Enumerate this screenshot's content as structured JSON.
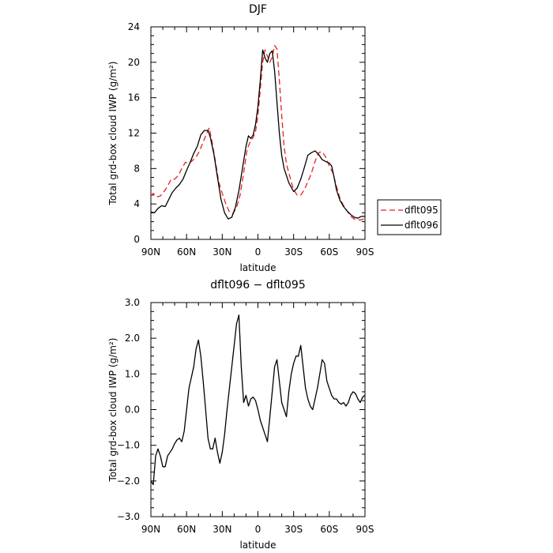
{
  "chart_data": [
    {
      "type": "line",
      "title": "DJF",
      "xlabel": "latitude",
      "ylabel": "Total grd-box cloud IWP (g/m²)",
      "xlim": [
        90,
        -90
      ],
      "ylim": [
        0,
        24
      ],
      "yticks": [
        0,
        4,
        8,
        12,
        16,
        20,
        24
      ],
      "xticks": [
        {
          "value": 90,
          "label": "90N"
        },
        {
          "value": 60,
          "label": "60N"
        },
        {
          "value": 30,
          "label": "30N"
        },
        {
          "value": 0,
          "label": "0"
        },
        {
          "value": -30,
          "label": "30S"
        },
        {
          "value": -60,
          "label": "60S"
        },
        {
          "value": -90,
          "label": "90S"
        }
      ],
      "legend": {
        "placement": "right"
      },
      "series": [
        {
          "name": "dflt095",
          "color": "#e8201a",
          "dash": "dashed",
          "x": [
            90,
            88,
            85,
            82,
            79,
            76,
            73,
            70,
            67,
            64,
            61,
            58,
            55,
            52,
            49,
            46,
            43,
            41,
            39,
            36,
            33,
            30,
            27,
            24,
            21,
            18,
            15,
            12,
            9,
            6,
            4,
            2,
            0,
            -2,
            -4,
            -6,
            -8,
            -10,
            -12,
            -14,
            -16,
            -18,
            -20,
            -22,
            -24,
            -26,
            -28,
            -30,
            -33,
            -36,
            -39,
            -42,
            -45,
            -48,
            -51,
            -54,
            -57,
            -60,
            -63,
            -66,
            -69,
            -72,
            -75,
            -78,
            -81,
            -84,
            -87,
            -90
          ],
          "y": [
            4.9,
            5.2,
            4.8,
            4.9,
            5.4,
            6.0,
            6.8,
            6.8,
            7.2,
            8.0,
            8.7,
            8.6,
            8.9,
            9.3,
            10.0,
            11.0,
            12.0,
            12.6,
            11.3,
            9.0,
            6.5,
            5.2,
            4.0,
            3.1,
            2.9,
            3.6,
            5.0,
            7.5,
            10.2,
            11.2,
            11.5,
            12.2,
            14.0,
            17.0,
            20.0,
            21.4,
            20.7,
            20.0,
            20.6,
            21.9,
            21.5,
            18.0,
            14.0,
            10.5,
            8.5,
            7.5,
            6.5,
            5.6,
            5.0,
            5.0,
            5.6,
            6.5,
            7.5,
            8.8,
            9.8,
            9.9,
            9.3,
            8.3,
            7.5,
            6.0,
            4.6,
            3.8,
            3.2,
            2.6,
            2.3,
            2.2,
            2.2,
            2.4
          ]
        },
        {
          "name": "dflt096",
          "color": "#000000",
          "dash": "solid",
          "x": [
            90,
            87,
            84,
            81,
            78,
            75,
            72,
            69,
            66,
            63,
            60,
            57,
            54,
            51,
            48,
            45,
            42,
            40,
            37,
            34,
            31,
            28,
            25,
            22,
            19,
            16,
            13,
            10,
            8,
            6,
            4,
            2,
            0,
            -2,
            -4,
            -6,
            -8,
            -10,
            -12,
            -14,
            -16,
            -18,
            -20,
            -22,
            -24,
            -26,
            -28,
            -30,
            -33,
            -36,
            -39,
            -42,
            -45,
            -48,
            -51,
            -54,
            -57,
            -60,
            -62,
            -64,
            -66,
            -69,
            -72,
            -75,
            -78,
            -81,
            -84,
            -87,
            -90
          ],
          "y": [
            3.1,
            3.0,
            3.5,
            3.8,
            3.7,
            4.5,
            5.3,
            5.8,
            6.2,
            6.8,
            7.8,
            8.7,
            9.7,
            10.5,
            11.8,
            12.3,
            12.3,
            11.5,
            9.6,
            7.0,
            4.5,
            3.0,
            2.3,
            2.5,
            3.6,
            5.5,
            8.0,
            10.5,
            11.7,
            11.4,
            11.8,
            13.0,
            15.0,
            18.0,
            21.4,
            20.5,
            20.0,
            21.0,
            21.3,
            19.0,
            15.5,
            12.0,
            9.5,
            8.0,
            7.2,
            6.4,
            5.9,
            5.4,
            5.8,
            6.8,
            8.1,
            9.5,
            9.8,
            10.0,
            9.6,
            9.0,
            8.8,
            8.6,
            8.3,
            7.0,
            5.6,
            4.4,
            3.7,
            3.2,
            2.8,
            2.5,
            2.4,
            2.6,
            2.6
          ]
        }
      ]
    },
    {
      "type": "line",
      "title": "dflt096 − dflt095",
      "xlabel": "latitude",
      "ylabel": "Total grd-box cloud IWP (g/m²)",
      "xlim": [
        90,
        -90
      ],
      "ylim": [
        -3.0,
        3.0
      ],
      "yticks": [
        {
          "value": -3.0,
          "label": "−3.0"
        },
        {
          "value": -2.0,
          "label": "−2.0"
        },
        {
          "value": -1.0,
          "label": "−1.0"
        },
        {
          "value": 0.0,
          "label": "0.0"
        },
        {
          "value": 1.0,
          "label": "1.0"
        },
        {
          "value": 2.0,
          "label": "2.0"
        },
        {
          "value": 3.0,
          "label": "3.0"
        }
      ],
      "xticks": [
        {
          "value": 90,
          "label": "90N"
        },
        {
          "value": 60,
          "label": "60N"
        },
        {
          "value": 30,
          "label": "30N"
        },
        {
          "value": 0,
          "label": "0"
        },
        {
          "value": -30,
          "label": "30S"
        },
        {
          "value": -60,
          "label": "60S"
        },
        {
          "value": -90,
          "label": "90S"
        }
      ],
      "series": [
        {
          "color": "#000000",
          "dash": "solid",
          "x": [
            90,
            88,
            86,
            84,
            82,
            80,
            78,
            76,
            74,
            72,
            70,
            68,
            66,
            64,
            62,
            60,
            58,
            56,
            54,
            52,
            50,
            48,
            46,
            44,
            42,
            40,
            38,
            36,
            34,
            32,
            30,
            28,
            26,
            24,
            22,
            20,
            18,
            16,
            14,
            12,
            10,
            8,
            6,
            4,
            2,
            0,
            -2,
            -4,
            -6,
            -8,
            -10,
            -12,
            -14,
            -16,
            -18,
            -20,
            -22,
            -24,
            -26,
            -28,
            -30,
            -32,
            -34,
            -36,
            -38,
            -40,
            -42,
            -44,
            -46,
            -48,
            -50,
            -52,
            -54,
            -56,
            -58,
            -60,
            -62,
            -64,
            -66,
            -68,
            -70,
            -72,
            -74,
            -76,
            -78,
            -80,
            -82,
            -84,
            -86,
            -88,
            -90
          ],
          "y": [
            -2.0,
            -2.1,
            -1.3,
            -1.1,
            -1.3,
            -1.6,
            -1.6,
            -1.3,
            -1.2,
            -1.1,
            -0.95,
            -0.85,
            -0.8,
            -0.9,
            -0.6,
            0.0,
            0.6,
            0.9,
            1.2,
            1.7,
            1.95,
            1.5,
            0.8,
            0.0,
            -0.8,
            -1.1,
            -1.1,
            -0.8,
            -1.2,
            -1.5,
            -1.2,
            -0.7,
            0.0,
            0.6,
            1.2,
            1.8,
            2.4,
            2.65,
            1.2,
            0.2,
            0.4,
            0.1,
            0.3,
            0.35,
            0.25,
            0.0,
            -0.3,
            -0.5,
            -0.7,
            -0.9,
            -0.2,
            0.5,
            1.2,
            1.4,
            0.8,
            0.2,
            0.0,
            -0.2,
            0.5,
            1.0,
            1.3,
            1.5,
            1.5,
            1.8,
            1.2,
            0.6,
            0.3,
            0.1,
            0.0,
            0.3,
            0.6,
            1.0,
            1.4,
            1.3,
            0.8,
            0.6,
            0.4,
            0.3,
            0.3,
            0.2,
            0.15,
            0.2,
            0.1,
            0.2,
            0.4,
            0.5,
            0.45,
            0.3,
            0.2,
            0.35,
            0.4
          ]
        }
      ]
    }
  ]
}
